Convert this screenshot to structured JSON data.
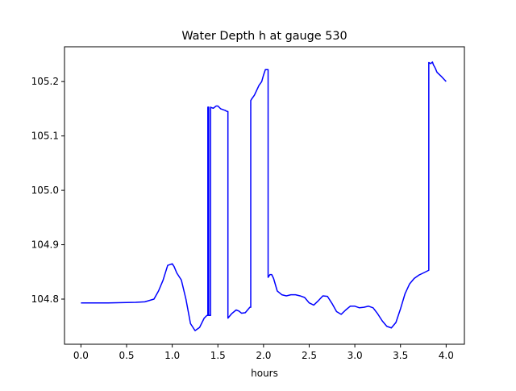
{
  "chart_data": {
    "type": "line",
    "title": "Water Depth h at gauge 530",
    "xlabel": "hours",
    "ylabel": "",
    "xlim": [
      -0.18,
      4.2
    ],
    "ylim": [
      104.717,
      105.264
    ],
    "x_ticks": [
      0.0,
      0.5,
      1.0,
      1.5,
      2.0,
      2.5,
      3.0,
      3.5,
      4.0
    ],
    "x_tick_labels": [
      "0.0",
      "0.5",
      "1.0",
      "1.5",
      "2.0",
      "2.5",
      "3.0",
      "3.5",
      "4.0"
    ],
    "y_ticks": [
      104.8,
      104.9,
      105.0,
      105.1,
      105.2
    ],
    "y_tick_labels": [
      "104.8",
      "104.9",
      "105.0",
      "105.1",
      "105.2"
    ],
    "grid": false,
    "legend": "none",
    "series": [
      {
        "color": "#0000ff",
        "x": [
          0.0,
          0.3,
          0.6,
          0.7,
          0.8,
          0.85,
          0.9,
          0.95,
          1.0,
          1.02,
          1.05,
          1.1,
          1.15,
          1.2,
          1.25,
          1.3,
          1.35,
          1.38,
          1.39,
          1.39,
          1.4,
          1.4,
          1.41,
          1.42,
          1.42,
          1.43,
          1.45,
          1.48,
          1.5,
          1.53,
          1.58,
          1.6,
          1.61,
          1.61,
          1.65,
          1.7,
          1.73,
          1.76,
          1.8,
          1.85,
          1.86,
          1.86,
          1.87,
          1.9,
          1.95,
          1.98,
          2.0,
          2.02,
          2.04,
          2.05,
          2.05,
          2.07,
          2.09,
          2.11,
          2.15,
          2.2,
          2.25,
          2.3,
          2.35,
          2.4,
          2.45,
          2.5,
          2.55,
          2.6,
          2.65,
          2.7,
          2.75,
          2.8,
          2.85,
          2.9,
          2.95,
          3.0,
          3.05,
          3.1,
          3.15,
          3.2,
          3.25,
          3.3,
          3.35,
          3.4,
          3.45,
          3.5,
          3.55,
          3.6,
          3.65,
          3.7,
          3.75,
          3.81,
          3.81,
          3.83,
          3.85,
          3.86,
          3.88,
          3.9,
          3.95,
          4.0
        ],
        "values": [
          104.793,
          104.793,
          104.794,
          104.795,
          104.8,
          104.815,
          104.835,
          104.862,
          104.865,
          104.86,
          104.848,
          104.835,
          104.8,
          104.755,
          104.742,
          104.748,
          104.765,
          104.77,
          104.77,
          105.153,
          105.153,
          104.77,
          104.77,
          104.77,
          105.153,
          105.152,
          105.151,
          105.155,
          105.155,
          105.15,
          105.147,
          105.145,
          105.145,
          104.765,
          104.773,
          104.78,
          104.778,
          104.774,
          104.775,
          104.785,
          104.785,
          105.165,
          105.168,
          105.175,
          105.193,
          105.2,
          105.212,
          105.222,
          105.222,
          105.222,
          104.84,
          104.845,
          104.845,
          104.838,
          104.815,
          104.808,
          104.806,
          104.808,
          104.808,
          104.806,
          104.803,
          104.793,
          104.789,
          104.797,
          104.806,
          104.805,
          104.792,
          104.777,
          104.772,
          104.78,
          104.787,
          104.787,
          104.784,
          104.785,
          104.787,
          104.784,
          104.773,
          104.76,
          104.75,
          104.747,
          104.757,
          104.782,
          104.81,
          104.828,
          104.838,
          104.844,
          104.848,
          104.853,
          105.235,
          105.233,
          105.236,
          105.231,
          105.225,
          105.217,
          105.209,
          105.2
        ]
      }
    ]
  }
}
